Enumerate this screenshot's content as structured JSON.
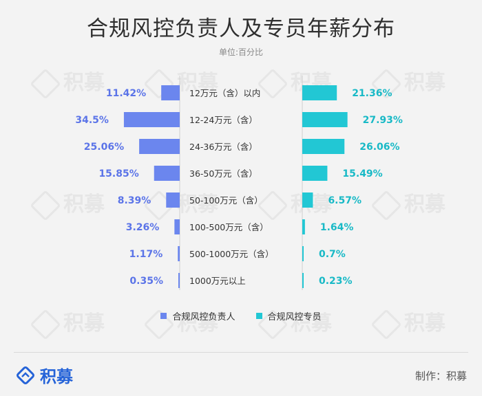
{
  "title": "合规风控负责人及专员年薪分布",
  "unit_label": "单位:百分比",
  "watermark_text": "积募",
  "logo_text": "积募",
  "credit": "制作：积募",
  "colors": {
    "left": "#6b86ee",
    "right": "#22c7d4",
    "left_text": "#5b74e8",
    "right_text": "#18b9c6"
  },
  "chart_data": {
    "type": "bar",
    "orientation": "horizontal-butterfly",
    "categories": [
      "12万元（含）以内",
      "12-24万元（含）",
      "24-36万元（含）",
      "36-50万元（含）",
      "50-100万元（含）",
      "100-500万元（含）",
      "500-1000万元（含）",
      "1000万元以上"
    ],
    "series": [
      {
        "name": "合规风控负责人",
        "values": [
          11.42,
          34.5,
          25.06,
          15.85,
          8.39,
          3.26,
          1.17,
          0.35
        ],
        "labels": [
          "11.42%",
          "34.5%",
          "25.06%",
          "15.85%",
          "8.39%",
          "3.26%",
          "1.17%",
          "0.35%"
        ]
      },
      {
        "name": "合规风控专员",
        "values": [
          21.36,
          27.93,
          26.06,
          15.49,
          6.57,
          1.64,
          0.7,
          0.23
        ],
        "labels": [
          "21.36%",
          "27.93%",
          "26.06%",
          "15.49%",
          "6.57%",
          "1.64%",
          "0.7%",
          "0.23%"
        ]
      }
    ],
    "legend_position": "bottom",
    "grid": false
  }
}
